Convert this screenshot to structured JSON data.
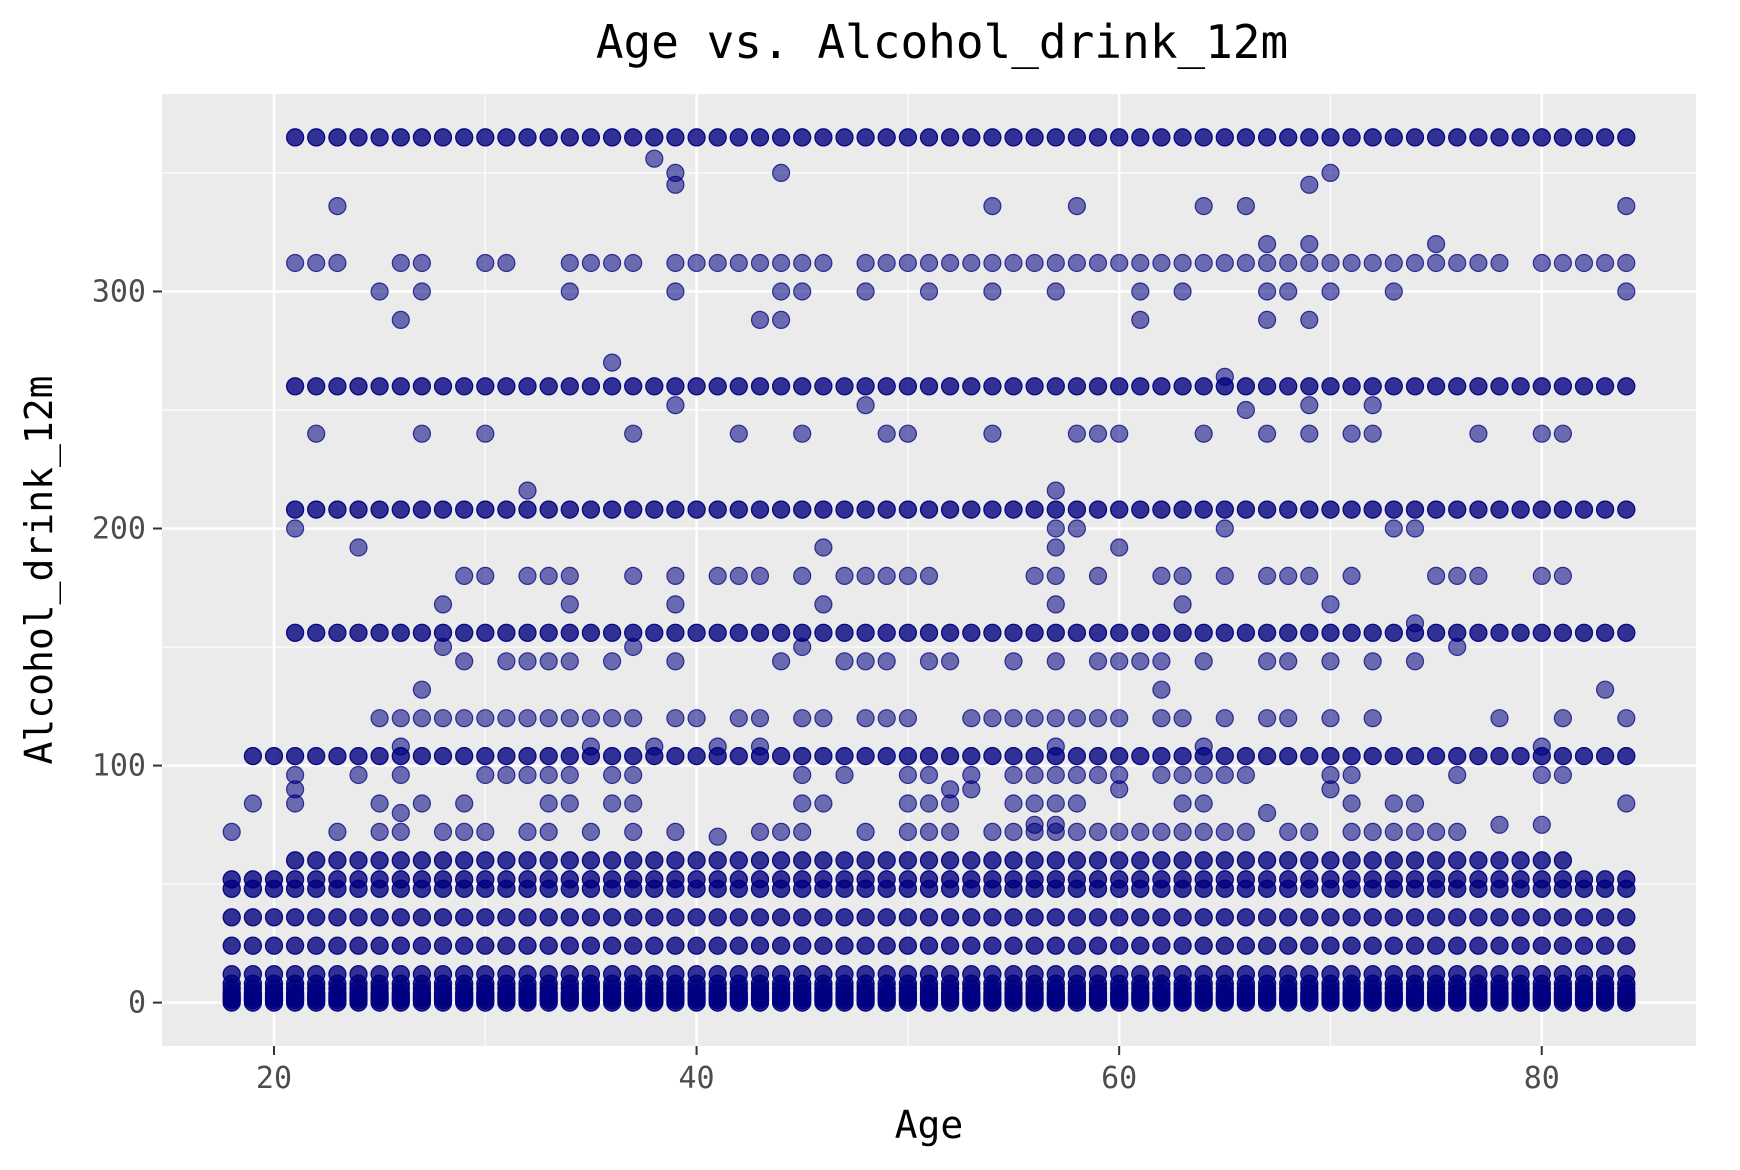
{
  "chart_data": {
    "type": "scatter",
    "title": "Age vs. Alcohol_drink_12m",
    "xlabel": "Age",
    "ylabel": "Alcohol_drink_12m",
    "xlim": [
      14.7,
      87.3
    ],
    "ylim": [
      -18.3,
      383.3
    ],
    "x_ticks": [
      20,
      40,
      60,
      80
    ],
    "y_ticks": [
      0,
      100,
      200,
      300
    ],
    "grid": true,
    "point_color": "#000080",
    "point_opacity": 0.55,
    "panel_background": "#EBEBEB",
    "grid_color": "#FFFFFF",
    "age_range": [
      18,
      84
    ],
    "dense_levels": [
      {
        "y": 365,
        "x_from": 21,
        "x_to": 84
      },
      {
        "y": 260,
        "x_from": 21,
        "x_to": 84
      },
      {
        "y": 208,
        "x_from": 21,
        "x_to": 84
      },
      {
        "y": 156,
        "x_from": 21,
        "x_to": 84
      },
      {
        "y": 104,
        "x_from": 19,
        "x_to": 84
      },
      {
        "y": 60,
        "x_from": 21,
        "x_to": 81
      },
      {
        "y": 52,
        "x_from": 18,
        "x_to": 84
      },
      {
        "y": 48,
        "x_from": 18,
        "x_to": 84
      },
      {
        "y": 36,
        "x_from": 18,
        "x_to": 84
      },
      {
        "y": 24,
        "x_from": 18,
        "x_to": 84
      },
      {
        "y": 12,
        "x_from": 18,
        "x_to": 84
      },
      {
        "y": 8,
        "x_from": 18,
        "x_to": 84
      },
      {
        "y": 6,
        "x_from": 18,
        "x_to": 84
      },
      {
        "y": 4,
        "x_from": 18,
        "x_to": 84
      },
      {
        "y": 3,
        "x_from": 18,
        "x_to": 84
      },
      {
        "y": 2,
        "x_from": 18,
        "x_to": 84
      },
      {
        "y": 1,
        "x_from": 18,
        "x_to": 84
      },
      {
        "y": 0,
        "x_from": 18,
        "x_to": 84
      }
    ],
    "partial_levels": [
      {
        "y": 312,
        "x": [
          21,
          22,
          23,
          26,
          27,
          30,
          31,
          34,
          35,
          36,
          37,
          39,
          40,
          41,
          42,
          43,
          44,
          45,
          46,
          48,
          49,
          50,
          51,
          52,
          53,
          54,
          55,
          56,
          57,
          58,
          59,
          60,
          61,
          62,
          63,
          64,
          65,
          66,
          67,
          68,
          69,
          70,
          71,
          72,
          73,
          74,
          75,
          76,
          77,
          78,
          80,
          81,
          82,
          83,
          84
        ]
      },
      {
        "y": 300,
        "x": [
          25,
          27,
          34,
          39,
          44,
          45,
          48,
          51,
          54,
          57,
          61,
          63,
          67,
          68,
          70,
          73,
          84
        ]
      },
      {
        "y": 240,
        "x": [
          22,
          27,
          30,
          37,
          42,
          45,
          49,
          50,
          54,
          58,
          59,
          60,
          64,
          67,
          69,
          71,
          72,
          77,
          80,
          81
        ]
      },
      {
        "y": 180,
        "x": [
          29,
          30,
          32,
          33,
          34,
          37,
          39,
          41,
          42,
          43,
          45,
          47,
          48,
          49,
          50,
          51,
          56,
          57,
          59,
          62,
          63,
          65,
          67,
          68,
          69,
          71,
          75,
          76,
          77,
          80,
          81
        ]
      },
      {
        "y": 144,
        "x": [
          29,
          31,
          32,
          33,
          34,
          36,
          39,
          44,
          47,
          48,
          49,
          51,
          52,
          55,
          57,
          59,
          60,
          61,
          62,
          64,
          67,
          68,
          70,
          72,
          74
        ]
      },
      {
        "y": 120,
        "x": [
          25,
          26,
          27,
          28,
          29,
          30,
          31,
          32,
          33,
          34,
          35,
          36,
          37,
          39,
          40,
          42,
          43,
          45,
          46,
          48,
          49,
          50,
          53,
          54,
          55,
          56,
          57,
          58,
          59,
          60,
          62,
          63,
          65,
          67,
          68,
          70,
          72,
          78,
          81,
          84
        ]
      },
      {
        "y": 96,
        "x": [
          21,
          24,
          26,
          30,
          31,
          32,
          33,
          34,
          36,
          37,
          45,
          47,
          50,
          51,
          53,
          55,
          56,
          57,
          58,
          59,
          60,
          62,
          63,
          64,
          65,
          66,
          70,
          71,
          76,
          80,
          81
        ]
      },
      {
        "y": 84,
        "x": [
          19,
          21,
          25,
          27,
          29,
          33,
          34,
          36,
          37,
          45,
          46,
          50,
          51,
          52,
          55,
          56,
          57,
          58,
          63,
          64,
          71,
          73,
          74,
          84
        ]
      },
      {
        "y": 72,
        "x": [
          18,
          23,
          25,
          26,
          28,
          29,
          30,
          32,
          33,
          35,
          37,
          39,
          43,
          44,
          45,
          48,
          50,
          51,
          52,
          54,
          55,
          56,
          57,
          58,
          59,
          60,
          61,
          62,
          63,
          64,
          65,
          66,
          68,
          69,
          71,
          72,
          73,
          74,
          75,
          76
        ]
      },
      {
        "y": 216,
        "x": [
          32,
          57
        ]
      },
      {
        "y": 200,
        "x": [
          21,
          57,
          58,
          65,
          73,
          74
        ]
      },
      {
        "y": 192,
        "x": [
          24,
          46,
          57,
          60
        ]
      },
      {
        "y": 168,
        "x": [
          28,
          34,
          39,
          46,
          57,
          63,
          70
        ]
      },
      {
        "y": 150,
        "x": [
          28,
          37,
          45,
          76
        ]
      },
      {
        "y": 160,
        "x": [
          74
        ]
      },
      {
        "y": 132,
        "x": [
          27,
          62,
          83
        ]
      },
      {
        "y": 108,
        "x": [
          26,
          35,
          38,
          41,
          43,
          57,
          64,
          80
        ]
      },
      {
        "y": 90,
        "x": [
          21,
          52,
          53,
          60,
          70
        ]
      },
      {
        "y": 80,
        "x": [
          26,
          67
        ]
      },
      {
        "y": 75,
        "x": [
          56,
          57,
          78,
          80
        ]
      },
      {
        "y": 70,
        "x": [
          41
        ]
      },
      {
        "y": 356,
        "x": [
          38
        ]
      },
      {
        "y": 350,
        "x": [
          39,
          44,
          70
        ]
      },
      {
        "y": 345,
        "x": [
          39,
          69
        ]
      },
      {
        "y": 336,
        "x": [
          23,
          54,
          58,
          64,
          66,
          84
        ]
      },
      {
        "y": 320,
        "x": [
          67,
          69,
          75
        ]
      },
      {
        "y": 288,
        "x": [
          26,
          43,
          44,
          61,
          67,
          69
        ]
      },
      {
        "y": 270,
        "x": [
          36
        ]
      },
      {
        "y": 264,
        "x": [
          65
        ]
      },
      {
        "y": 252,
        "x": [
          39,
          48,
          69,
          72
        ]
      },
      {
        "y": 250,
        "x": [
          66
        ]
      }
    ]
  }
}
